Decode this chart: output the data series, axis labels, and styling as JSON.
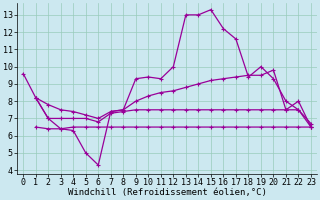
{
  "background_color": "#cce8f0",
  "grid_color": "#99ccbb",
  "line_color": "#990099",
  "marker": "+",
  "xlabel": "Windchill (Refroidissement éolien,°C)",
  "xlabel_fontsize": 6.5,
  "tick_fontsize": 6,
  "xlim": [
    -0.5,
    23.5
  ],
  "ylim": [
    3.8,
    13.7
  ],
  "yticks": [
    4,
    5,
    6,
    7,
    8,
    9,
    10,
    11,
    12,
    13
  ],
  "xticks": [
    0,
    1,
    2,
    3,
    4,
    5,
    6,
    7,
    8,
    9,
    10,
    11,
    12,
    13,
    14,
    15,
    16,
    17,
    18,
    19,
    20,
    21,
    22,
    23
  ],
  "line1_x": [
    0,
    1,
    2,
    3,
    4,
    5,
    6,
    7,
    8,
    9,
    10,
    11,
    12,
    13,
    14,
    15,
    16,
    17,
    18,
    19,
    20,
    21,
    22,
    23
  ],
  "line1_y": [
    9.6,
    8.2,
    7.0,
    6.4,
    6.3,
    5.0,
    4.3,
    7.4,
    7.5,
    9.3,
    9.4,
    9.3,
    10.0,
    13.0,
    13.0,
    13.3,
    12.2,
    11.6,
    9.4,
    10.0,
    9.3,
    8.0,
    7.5,
    6.7
  ],
  "line2_x": [
    1,
    2,
    3,
    4,
    5,
    6,
    7,
    8,
    9,
    10,
    11,
    12,
    13,
    14,
    15,
    16,
    17,
    18,
    19,
    20,
    21,
    22,
    23
  ],
  "line2_y": [
    8.2,
    7.8,
    7.5,
    7.4,
    7.2,
    7.0,
    7.4,
    7.5,
    8.0,
    8.3,
    8.5,
    8.6,
    8.8,
    9.0,
    9.2,
    9.3,
    9.4,
    9.5,
    9.5,
    9.8,
    7.5,
    8.0,
    6.5
  ],
  "line3_x": [
    1,
    2,
    3,
    4,
    5,
    6,
    7,
    8,
    9,
    10,
    11,
    12,
    13,
    14,
    15,
    16,
    17,
    18,
    19,
    20,
    21,
    22,
    23
  ],
  "line3_y": [
    8.2,
    7.0,
    7.0,
    7.0,
    7.0,
    6.8,
    7.3,
    7.4,
    7.5,
    7.5,
    7.5,
    7.5,
    7.5,
    7.5,
    7.5,
    7.5,
    7.5,
    7.5,
    7.5,
    7.5,
    7.5,
    7.5,
    6.5
  ],
  "line4_x": [
    1,
    2,
    3,
    4,
    5,
    6,
    7,
    8,
    9,
    10,
    11,
    12,
    13,
    14,
    15,
    16,
    17,
    18,
    19,
    20,
    21,
    22,
    23
  ],
  "line4_y": [
    6.5,
    6.4,
    6.4,
    6.5,
    6.5,
    6.5,
    6.5,
    6.5,
    6.5,
    6.5,
    6.5,
    6.5,
    6.5,
    6.5,
    6.5,
    6.5,
    6.5,
    6.5,
    6.5,
    6.5,
    6.5,
    6.5,
    6.5
  ]
}
